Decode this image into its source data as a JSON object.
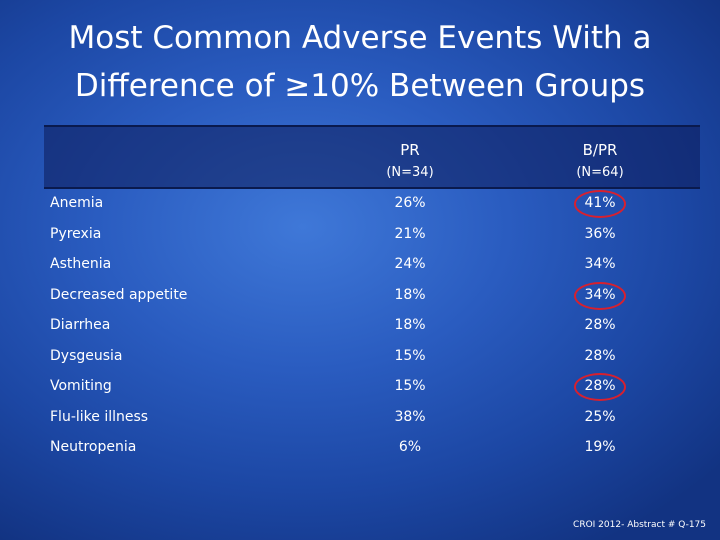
{
  "slide": {
    "title_line1": "Most Common Adverse Events With a",
    "title_line2": "Difference of ≥10% Between Groups",
    "footer": "CROI 2012- Abstract # Q-175"
  },
  "table": {
    "columns": [
      {
        "name": "PR",
        "n": "(N=34)"
      },
      {
        "name": "B/PR",
        "n": "(N=64)"
      }
    ],
    "rows": [
      {
        "label": "Anemia",
        "pr": "26%",
        "bpr": "41%",
        "circled": true
      },
      {
        "label": "Pyrexia",
        "pr": "21%",
        "bpr": "36%",
        "circled": false
      },
      {
        "label": "Asthenia",
        "pr": "24%",
        "bpr": "34%",
        "circled": false
      },
      {
        "label": "Decreased appetite",
        "pr": "18%",
        "bpr": "34%",
        "circled": true
      },
      {
        "label": "Diarrhea",
        "pr": "18%",
        "bpr": "28%",
        "circled": false
      },
      {
        "label": "Dysgeusia",
        "pr": "15%",
        "bpr": "28%",
        "circled": false
      },
      {
        "label": "Vomiting",
        "pr": "15%",
        "bpr": "28%",
        "circled": true
      },
      {
        "label": "Flu-like illness",
        "pr": "38%",
        "bpr": "25%",
        "circled": false
      },
      {
        "label": "Neutropenia",
        "pr": "6%",
        "bpr": "19%",
        "circled": false
      }
    ]
  },
  "colors": {
    "background": "#2a5cc0",
    "highlight_circle": "#d8202e"
  }
}
